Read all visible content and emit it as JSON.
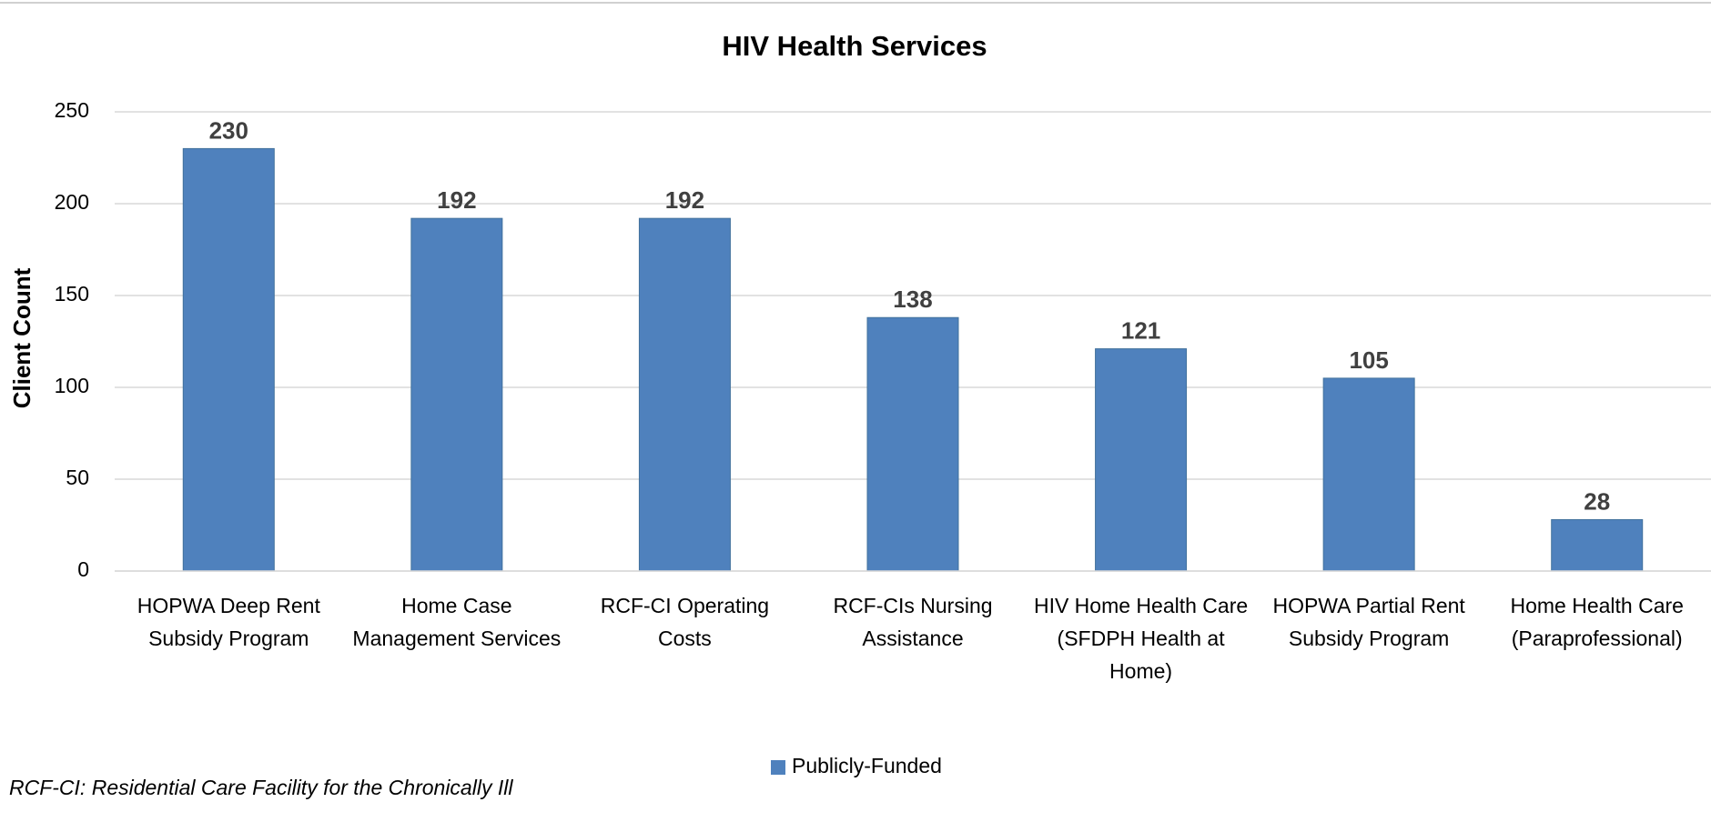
{
  "chart_data": {
    "type": "bar",
    "title": "HIV Health Services",
    "ylabel": "Client Count",
    "categories": [
      "HOPWA Deep Rent Subsidy Program",
      "Home Case Management Services",
      "RCF-CI Operating Costs",
      "RCF-CIs Nursing Assistance",
      "HIV Home Health Care (SFDPH Health at Home)",
      "HOPWA Partial Rent Subsidy Program",
      "Home Health Care (Paraprofessional)"
    ],
    "series": [
      {
        "name": "Publicly-Funded",
        "color": "#4f81bd",
        "values": [
          230,
          192,
          192,
          138,
          121,
          105,
          28
        ]
      }
    ],
    "ylim": [
      0,
      250
    ],
    "yticks": [
      0,
      50,
      100,
      150,
      200,
      250
    ],
    "grid": true,
    "legend": "bottom",
    "footnote": "RCF-CI: Residential Care Facility for the Chronically Ill"
  }
}
